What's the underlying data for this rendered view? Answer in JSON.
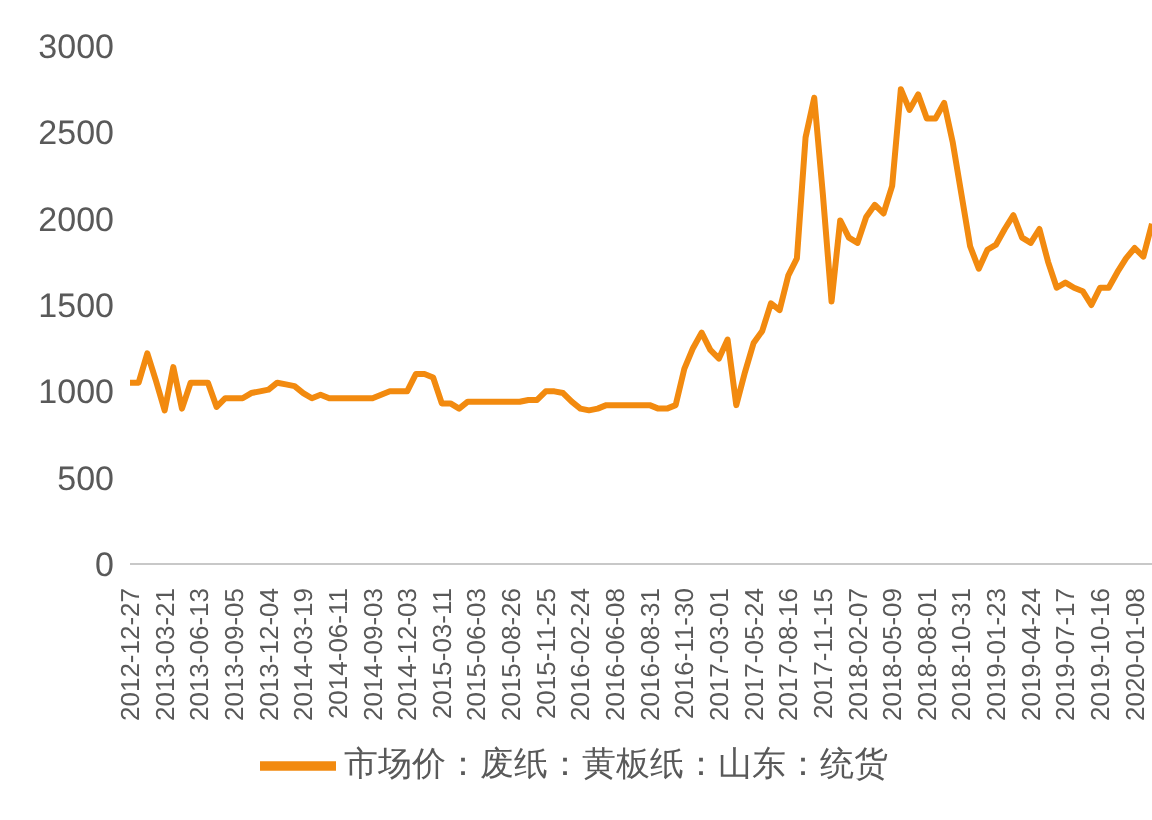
{
  "chart_data": {
    "type": "line",
    "categories": [
      "2012-12-27",
      null,
      null,
      null,
      "2013-03-21",
      null,
      null,
      null,
      "2013-06-13",
      null,
      null,
      null,
      "2013-09-05",
      null,
      null,
      null,
      "2013-12-04",
      null,
      null,
      null,
      "2014-03-19",
      null,
      null,
      null,
      "2014-06-11",
      null,
      null,
      null,
      "2014-09-03",
      null,
      null,
      null,
      "2014-12-03",
      null,
      null,
      null,
      "2015-03-11",
      null,
      null,
      null,
      "2015-06-03",
      null,
      null,
      null,
      "2015-08-26",
      null,
      null,
      null,
      "2015-11-25",
      null,
      null,
      null,
      "2016-02-24",
      null,
      null,
      null,
      "2016-06-08",
      null,
      null,
      null,
      "2016-08-31",
      null,
      null,
      null,
      "2016-11-30",
      null,
      null,
      null,
      "2017-03-01",
      null,
      null,
      null,
      "2017-05-24",
      null,
      null,
      null,
      "2017-08-16",
      null,
      null,
      null,
      "2017-11-15",
      null,
      null,
      null,
      "2018-02-07",
      null,
      null,
      null,
      "2018-05-09",
      null,
      null,
      null,
      "2018-08-01",
      null,
      null,
      null,
      "2018-10-31",
      null,
      null,
      null,
      "2019-01-23",
      null,
      null,
      null,
      "2019-04-24",
      null,
      null,
      null,
      "2019-07-17",
      null,
      null,
      null,
      "2019-10-16",
      null,
      null,
      null,
      "2020-01-08",
      null,
      null
    ],
    "series": [
      {
        "name": "市场价：废纸：黄板纸：山东：统货",
        "color": "#f28a0f",
        "values": [
          1050,
          1050,
          1220,
          1060,
          890,
          1140,
          900,
          1050,
          1050,
          1050,
          910,
          960,
          960,
          960,
          990,
          1000,
          1010,
          1050,
          1040,
          1030,
          990,
          960,
          980,
          960,
          960,
          960,
          960,
          960,
          960,
          980,
          1000,
          1000,
          1000,
          1100,
          1100,
          1080,
          930,
          930,
          900,
          940,
          940,
          940,
          940,
          940,
          940,
          940,
          950,
          950,
          1000,
          1000,
          990,
          940,
          900,
          890,
          900,
          920,
          920,
          920,
          920,
          920,
          920,
          900,
          900,
          920,
          1130,
          1250,
          1340,
          1240,
          1190,
          1300,
          920,
          1110,
          1280,
          1350,
          1510,
          1470,
          1670,
          1770,
          2470,
          2700,
          2140,
          1520,
          1990,
          1890,
          1860,
          2010,
          2080,
          2030,
          2190,
          2750,
          2630,
          2720,
          2580,
          2580,
          2670,
          2440,
          2140,
          1840,
          1710,
          1820,
          1850,
          1940,
          2020,
          1890,
          1860,
          1940,
          1750,
          1600,
          1630,
          1600,
          1580,
          1500,
          1600,
          1600,
          1690,
          1770,
          1830,
          1780,
          1970
        ]
      }
    ],
    "ylim": [
      0,
      3000
    ],
    "yticks": [
      0,
      500,
      1000,
      1500,
      2000,
      2500,
      3000
    ],
    "grid": false,
    "legend": "bottom",
    "marker": "none",
    "line_style": "solid"
  }
}
